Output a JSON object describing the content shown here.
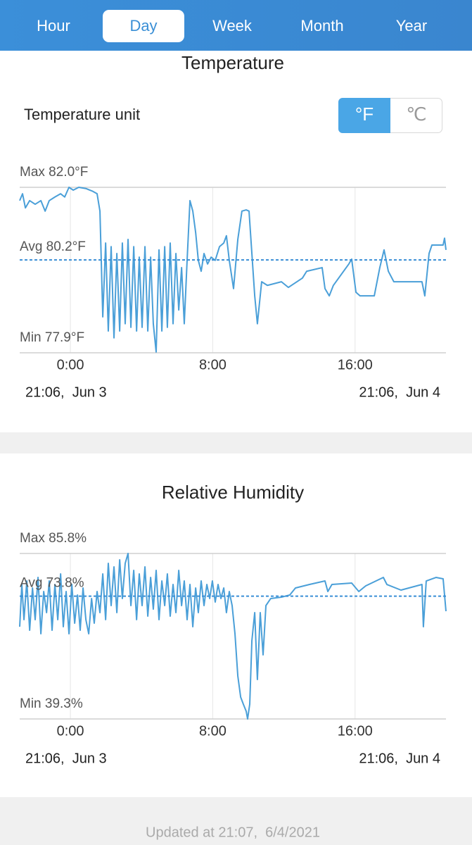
{
  "tabs": {
    "items": [
      "Hour",
      "Day",
      "Week",
      "Month",
      "Year"
    ],
    "selected": "Day"
  },
  "unit_toggle": {
    "label": "Temperature unit",
    "options": [
      "°F",
      "℃"
    ],
    "selected": "°F"
  },
  "chart_data": [
    {
      "type": "line",
      "title": "Temperature",
      "x": [
        -2.85,
        -2.69,
        -2.53,
        -2.29,
        -1.98,
        -1.66,
        -1.42,
        -1.19,
        -0.87,
        -0.55,
        -0.32,
        -0.08,
        0.16,
        0.47,
        0.87,
        1.26,
        1.5,
        1.66,
        1.82,
        1.98,
        2.13,
        2.29,
        2.45,
        2.61,
        2.77,
        2.92,
        3.08,
        3.24,
        3.4,
        3.56,
        3.72,
        3.87,
        4.03,
        4.19,
        4.35,
        4.51,
        4.66,
        4.82,
        4.98,
        5.14,
        5.3,
        5.45,
        5.61,
        5.77,
        5.93,
        6.09,
        6.25,
        6.4,
        6.56,
        6.72,
        6.88,
        7.04,
        7.19,
        7.35,
        7.51,
        7.71,
        7.91,
        8.14,
        8.38,
        8.62,
        8.77,
        8.93,
        9.17,
        9.41,
        9.64,
        9.88,
        10.04,
        10.2,
        10.36,
        10.51,
        10.75,
        11.07,
        11.86,
        12.25,
        13.04,
        13.28,
        14.15,
        14.31,
        14.55,
        14.78,
        15.65,
        15.81,
        16.05,
        16.28,
        17.08,
        17.39,
        17.63,
        17.87,
        18.18,
        19.76,
        19.92,
        20.16,
        20.32,
        20.95,
        21.03,
        21.11
      ],
      "series": [
        {
          "color": "#4a9fd8",
          "values": [
            81.67,
            81.84,
            81.49,
            81.67,
            81.58,
            81.67,
            81.41,
            81.67,
            81.76,
            81.84,
            81.76,
            82.0,
            81.93,
            82.0,
            81.97,
            81.9,
            81.84,
            81.41,
            78.79,
            80.62,
            78.44,
            80.53,
            78.27,
            80.36,
            78.44,
            80.62,
            78.62,
            80.71,
            78.53,
            80.53,
            78.44,
            80.27,
            78.53,
            80.53,
            78.44,
            80.27,
            78.62,
            77.92,
            80.45,
            78.44,
            80.53,
            78.53,
            80.62,
            78.62,
            80.36,
            78.96,
            80.01,
            78.62,
            80.19,
            81.67,
            81.41,
            80.88,
            80.19,
            79.92,
            80.36,
            80.1,
            80.27,
            80.19,
            80.53,
            80.62,
            80.8,
            80.19,
            79.49,
            80.71,
            81.41,
            81.44,
            81.41,
            80.36,
            79.31,
            78.62,
            79.66,
            79.57,
            79.66,
            79.52,
            79.75,
            79.92,
            80.01,
            79.49,
            79.31,
            79.57,
            80.1,
            80.22,
            79.4,
            79.31,
            79.31,
            80.01,
            80.45,
            79.92,
            79.66,
            79.66,
            79.31,
            80.36,
            80.57,
            80.57,
            80.74,
            80.45
          ]
        }
      ],
      "xlim": [
        -2.85,
        21.11
      ],
      "xticks": [
        {
          "value": 0,
          "label": "0:00"
        },
        {
          "value": 8,
          "label": "8:00"
        },
        {
          "value": 16,
          "label": "16:00"
        }
      ],
      "ylim": [
        77.9,
        82.0
      ],
      "yticks": [
        {
          "value": 82.0,
          "label": "Max 82.0°F"
        },
        {
          "value": 77.9,
          "label": "Min 77.9°F"
        }
      ],
      "reference_line": {
        "value": 80.2,
        "label": "Avg 80.2°F"
      },
      "range_labels": [
        "21:06,  Jun 3",
        "21:06,  Jun 4"
      ]
    },
    {
      "type": "line",
      "title": "Relative Humidity",
      "x": [
        -2.85,
        -2.73,
        -2.61,
        -2.45,
        -2.29,
        -2.13,
        -1.98,
        -1.82,
        -1.66,
        -1.5,
        -1.34,
        -1.19,
        -1.03,
        -0.87,
        -0.71,
        -0.55,
        -0.4,
        -0.24,
        -0.08,
        0.08,
        0.24,
        0.4,
        0.55,
        0.71,
        0.87,
        1.03,
        1.19,
        1.34,
        1.5,
        1.66,
        1.82,
        1.98,
        2.13,
        2.29,
        2.45,
        2.61,
        2.77,
        2.92,
        3.08,
        3.24,
        3.4,
        3.56,
        3.72,
        3.87,
        4.03,
        4.19,
        4.35,
        4.51,
        4.66,
        4.82,
        4.98,
        5.14,
        5.3,
        5.45,
        5.61,
        5.77,
        5.93,
        6.09,
        6.25,
        6.4,
        6.56,
        6.72,
        6.88,
        7.04,
        7.19,
        7.35,
        7.51,
        7.67,
        7.83,
        7.98,
        8.14,
        8.3,
        8.46,
        8.62,
        8.77,
        8.93,
        9.09,
        9.25,
        9.41,
        9.57,
        9.72,
        9.88,
        9.96,
        10.08,
        10.2,
        10.36,
        10.51,
        10.67,
        10.83,
        10.99,
        11.26,
        11.86,
        12.33,
        12.65,
        13.44,
        14.31,
        14.47,
        14.7,
        15.81,
        16.21,
        16.6,
        17.59,
        17.79,
        18.58,
        19.76,
        19.84,
        20.0,
        20.55,
        20.95,
        21.11
      ],
      "series": [
        {
          "color": "#4a9fd8",
          "values": [
            65.22,
            77.09,
            67.2,
            78.08,
            64.23,
            76.1,
            67.2,
            79.07,
            63.24,
            75.11,
            69.18,
            78.08,
            64.23,
            77.09,
            67.2,
            80.06,
            65.22,
            75.11,
            63.24,
            77.09,
            66.21,
            74.13,
            64.23,
            76.1,
            67.2,
            63.24,
            73.14,
            66.21,
            75.11,
            69.18,
            80.06,
            67.2,
            83.03,
            71.16,
            82.04,
            69.18,
            84.02,
            73.14,
            83.03,
            85.8,
            71.16,
            81.05,
            67.2,
            80.06,
            71.16,
            82.04,
            68.19,
            79.07,
            70.17,
            81.05,
            67.2,
            78.08,
            71.16,
            80.06,
            68.19,
            77.09,
            69.18,
            81.05,
            71.16,
            78.08,
            67.2,
            77.09,
            65.22,
            76.1,
            69.18,
            78.08,
            71.16,
            77.09,
            73.14,
            78.08,
            72.15,
            77.09,
            73.14,
            76.1,
            69.18,
            75.11,
            71.16,
            63.24,
            51.37,
            45.44,
            43.46,
            41.48,
            39.3,
            43.46,
            61.26,
            69.18,
            50.38,
            69.18,
            57.31,
            71.16,
            73.14,
            73.53,
            74.13,
            76.1,
            77.09,
            78.08,
            75.11,
            77.09,
            77.49,
            75.11,
            76.7,
            79.07,
            77.09,
            75.51,
            77.09,
            65.22,
            78.08,
            79.07,
            78.68,
            69.57
          ]
        }
      ],
      "xlim": [
        -2.85,
        21.11
      ],
      "xticks": [
        {
          "value": 0,
          "label": "0:00"
        },
        {
          "value": 8,
          "label": "8:00"
        },
        {
          "value": 16,
          "label": "16:00"
        }
      ],
      "ylim": [
        39.3,
        85.8
      ],
      "yticks": [
        {
          "value": 85.8,
          "label": "Max 85.8%"
        },
        {
          "value": 39.3,
          "label": "Min 39.3%"
        }
      ],
      "reference_line": {
        "value": 73.8,
        "label": "Avg 73.8%"
      },
      "range_labels": [
        "21:06,  Jun 3",
        "21:06,  Jun 4"
      ]
    }
  ],
  "footer": "Updated at 21:07,  6/4/2021"
}
